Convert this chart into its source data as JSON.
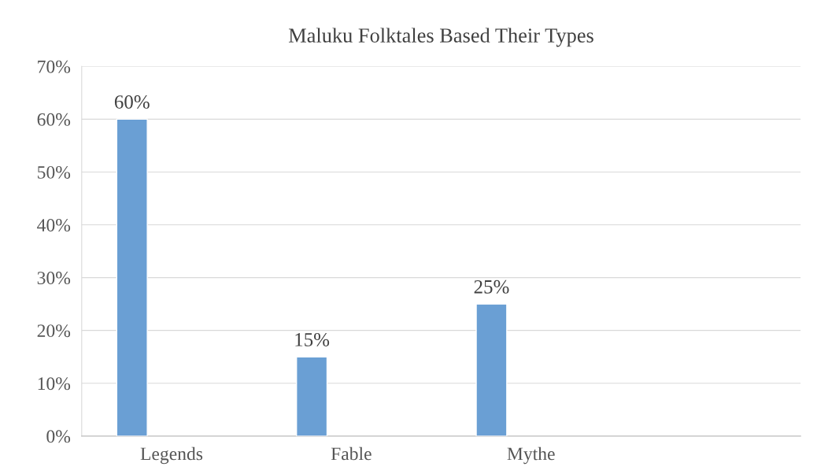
{
  "chart_data": {
    "type": "bar",
    "title": "Maluku Folktales Based Their Types",
    "categories": [
      "Legends",
      "Fable",
      "Mythe",
      null
    ],
    "values": [
      60,
      15,
      25,
      null
    ],
    "color": "#6a9fd4",
    "value_labels": [
      "60%",
      "15%",
      "25%",
      null
    ],
    "ylim": [
      0,
      70
    ],
    "yticks": [
      {
        "value": 0,
        "label": "0%"
      },
      {
        "value": 10,
        "label": "10%"
      },
      {
        "value": 20,
        "label": "20%"
      },
      {
        "value": 30,
        "label": "30%"
      },
      {
        "value": 40,
        "label": "40%"
      },
      {
        "value": 50,
        "label": "50%"
      },
      {
        "value": 60,
        "label": "60%"
      },
      {
        "value": 70,
        "label": "70%"
      }
    ],
    "grid": "y"
  }
}
